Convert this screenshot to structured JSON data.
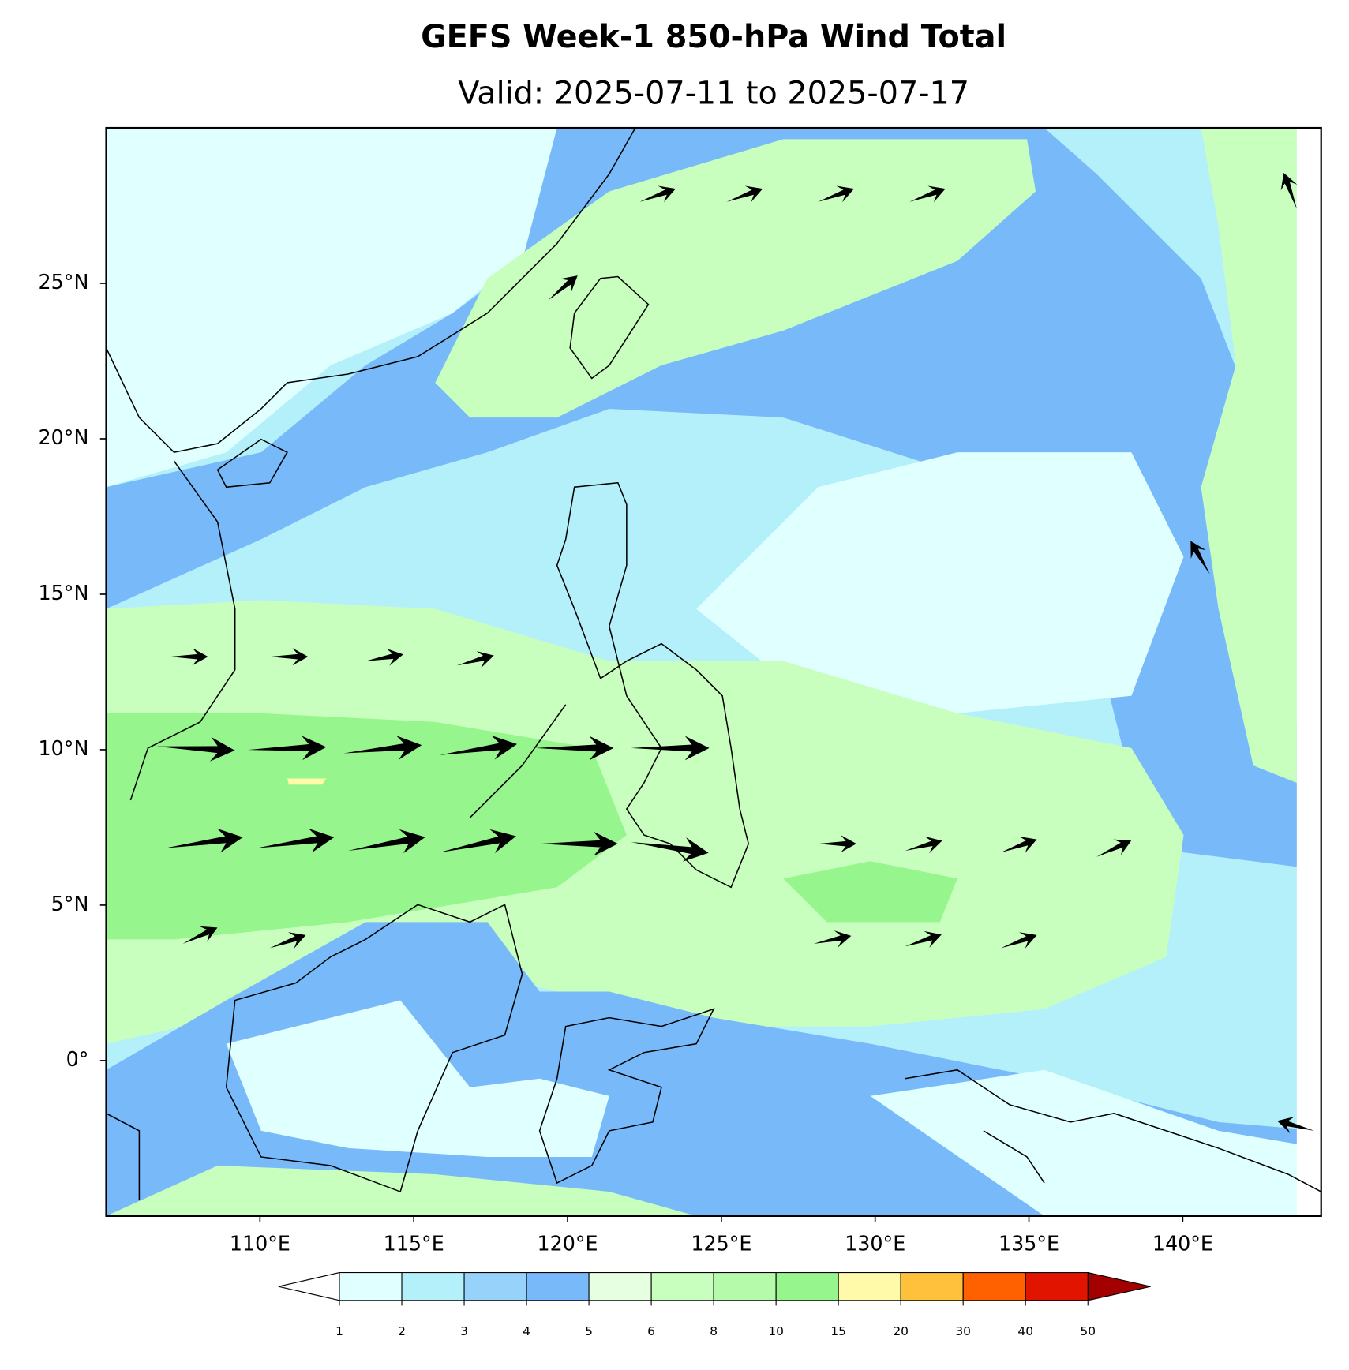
{
  "header": {
    "title": "GEFS Week-1 850-hPa Wind Total",
    "subtitle": "Valid: 2025-07-11 to 2025-07-17"
  },
  "map": {
    "xlim": [
      105,
      144.5
    ],
    "ylim": [
      -5,
      30
    ],
    "xticks": [
      {
        "value": 110,
        "label": "110°E"
      },
      {
        "value": 115,
        "label": "115°E"
      },
      {
        "value": 120,
        "label": "120°E"
      },
      {
        "value": 125,
        "label": "125°E"
      },
      {
        "value": 130,
        "label": "130°E"
      },
      {
        "value": 135,
        "label": "135°E"
      },
      {
        "value": 140,
        "label": "140°E"
      }
    ],
    "yticks": [
      {
        "value": 0,
        "label": "0°"
      },
      {
        "value": 5,
        "label": "5°N"
      },
      {
        "value": 10,
        "label": "10°N"
      },
      {
        "value": 15,
        "label": "15°N"
      },
      {
        "value": 20,
        "label": "20°N"
      },
      {
        "value": 25,
        "label": "25°N"
      }
    ]
  },
  "colorbar": {
    "levels": [
      1,
      2,
      3,
      4,
      5,
      6,
      8,
      10,
      15,
      20,
      30,
      40,
      50
    ],
    "colors": [
      "#e0ffff",
      "#b4f0fa",
      "#96d2fa",
      "#78b9fa",
      "#e6ffe1",
      "#c8ffbe",
      "#b4faaa",
      "#96f58c",
      "#fffaaa",
      "#ffc03c",
      "#ff6000",
      "#e11400"
    ],
    "under_color": "#ffffff",
    "over_color": "#a50000"
  }
}
